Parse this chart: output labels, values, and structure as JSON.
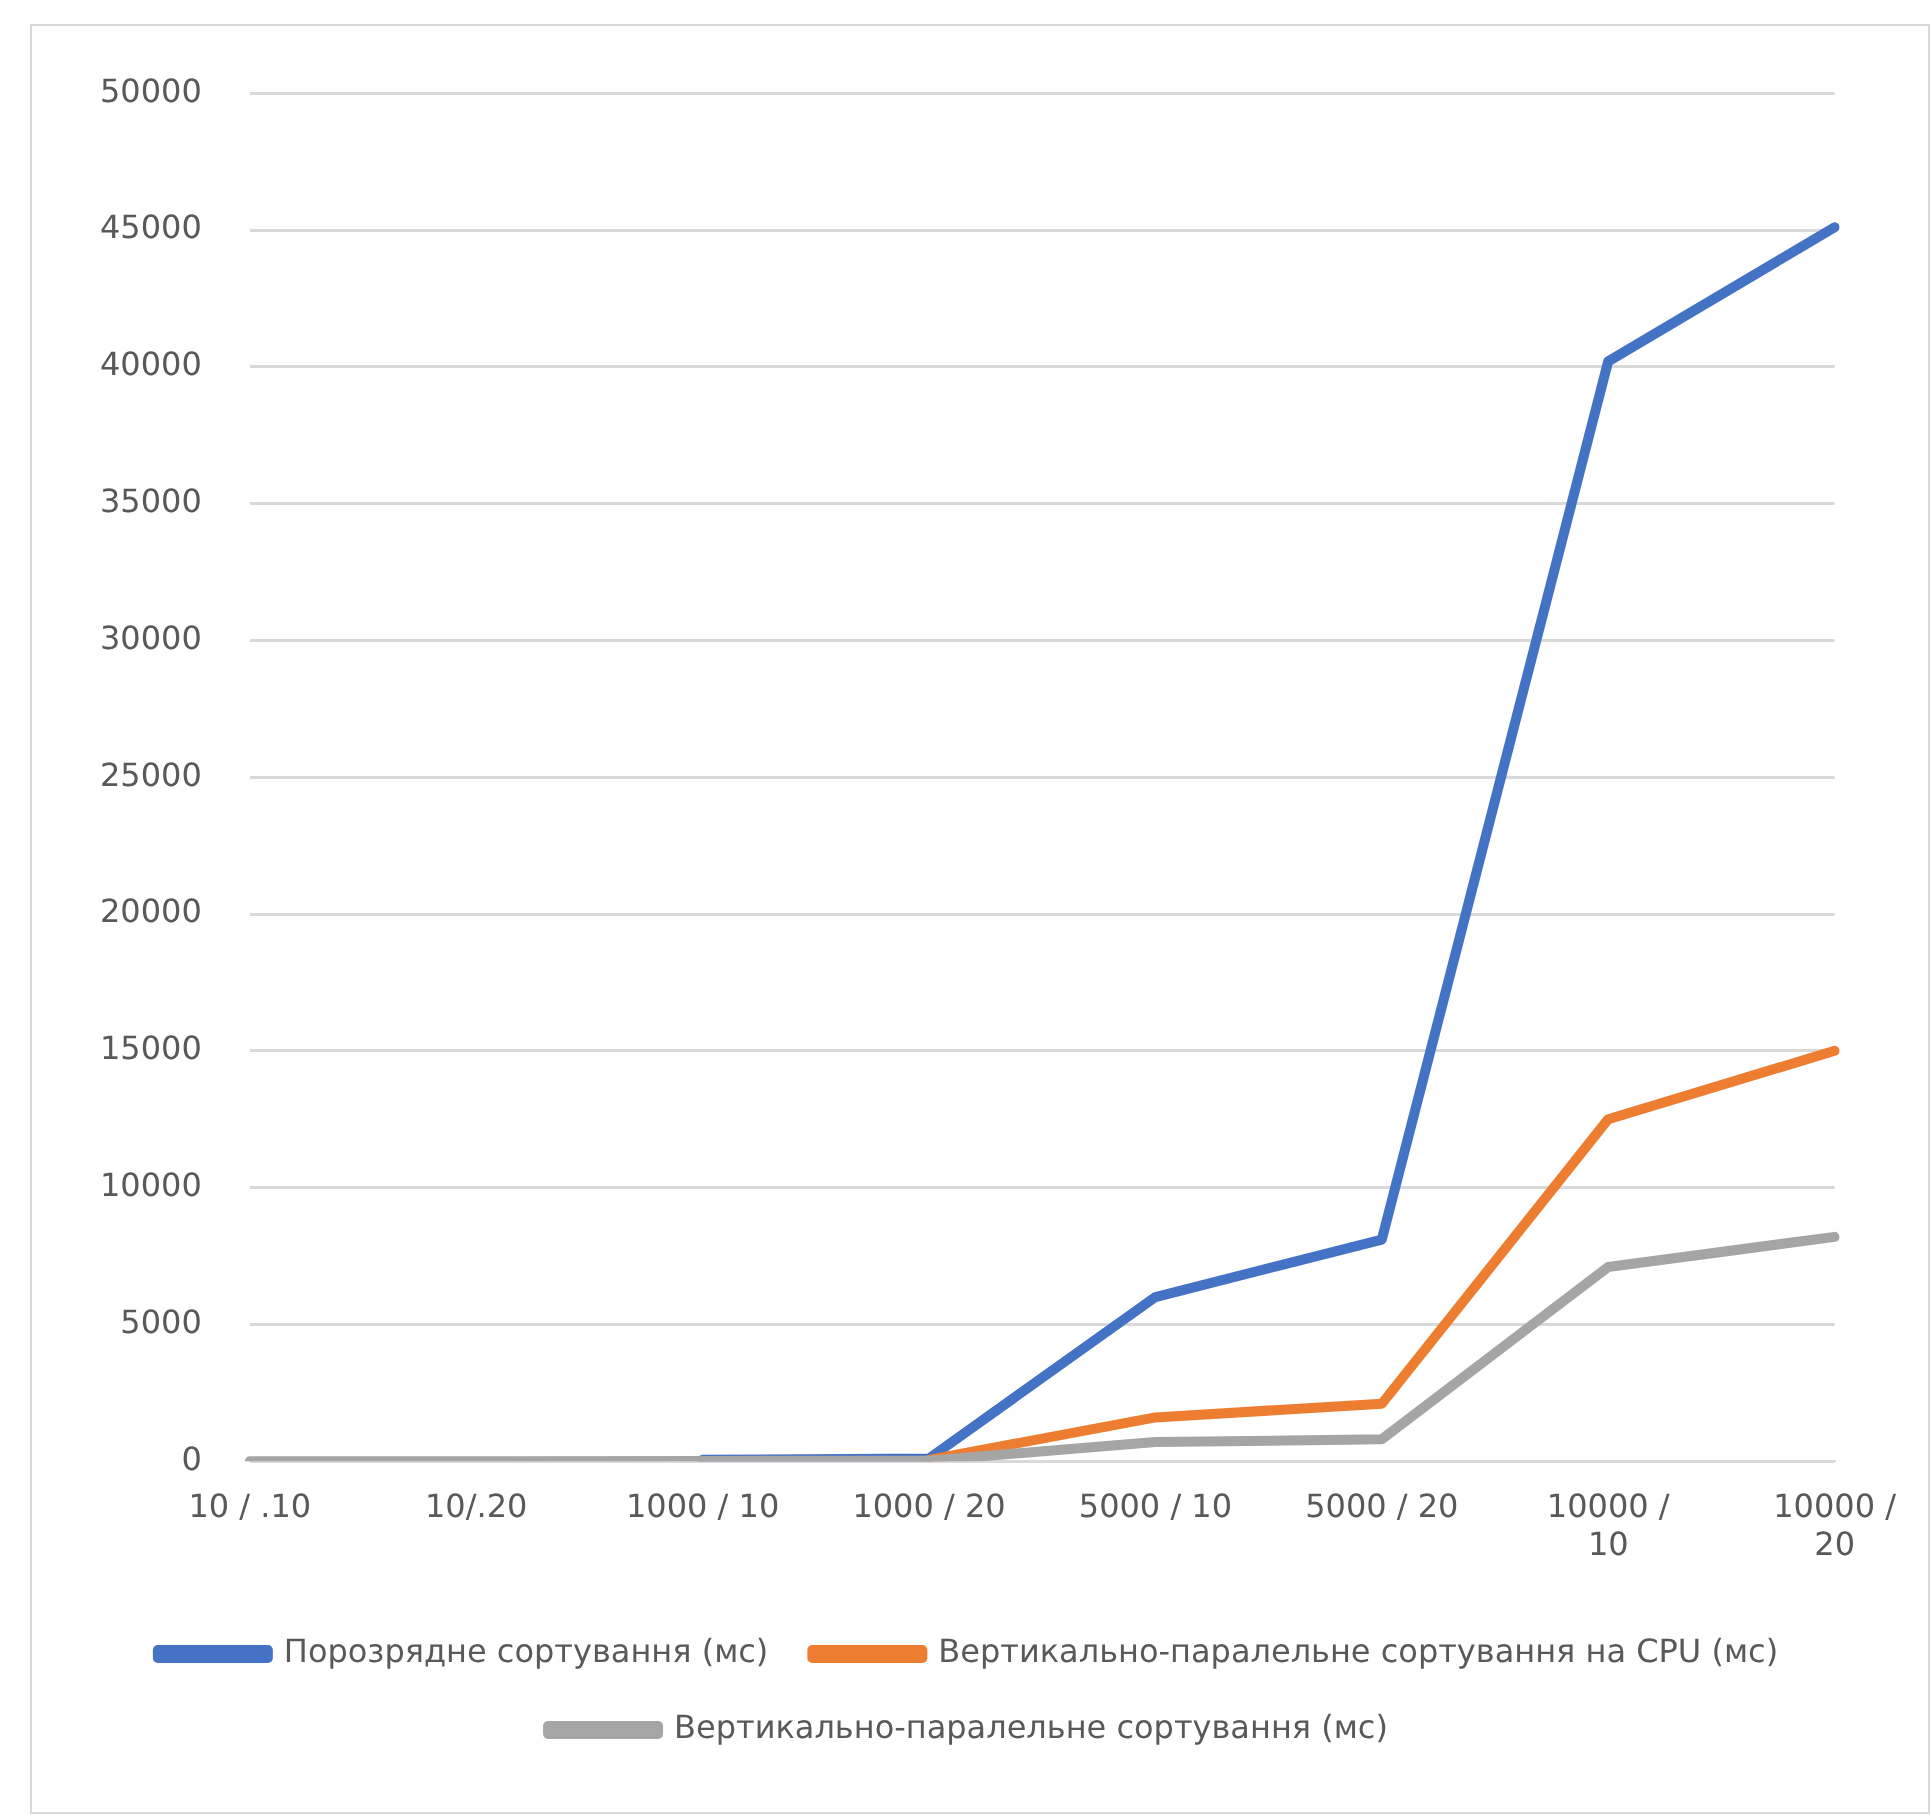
{
  "chart_data": {
    "type": "line",
    "categories": [
      "10 / .10",
      "10/.20",
      "1000 / 10",
      "1000 / 20",
      "5000 / 10",
      "5000 / 20",
      "10000 / 10",
      "10000 / 20"
    ],
    "series": [
      {
        "name": "Порозрядне сортування (мс)",
        "color": "#4472c4",
        "values": [
          null,
          null,
          50,
          100,
          6000,
          8100,
          40200,
          45100
        ]
      },
      {
        "name": "Вертикально-паралельне сортування на CPU (мс)",
        "color": "#ed7d31",
        "values": [
          null,
          null,
          null,
          50,
          1600,
          2100,
          12500,
          15000
        ]
      },
      {
        "name": "Вертикально-паралельне сортування (мс)",
        "color": "#a5a5a5",
        "values": [
          0,
          0,
          10,
          20,
          700,
          800,
          7100,
          8200
        ]
      }
    ],
    "ylim": [
      0,
      50000
    ],
    "yticks": [
      0,
      5000,
      10000,
      15000,
      20000,
      25000,
      30000,
      35000,
      40000,
      45000,
      50000
    ],
    "grid": "y",
    "legend": "bottom",
    "marker": "none",
    "line_style": "solid"
  }
}
